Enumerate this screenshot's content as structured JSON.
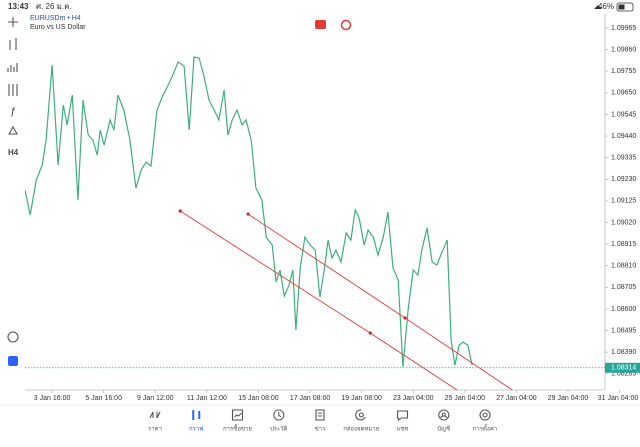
{
  "status_bar": {
    "time": "13:43",
    "date": "ศ. 26 ม.ค.",
    "battery": "46%"
  },
  "toolbar": {
    "timeframe": "H4"
  },
  "chart_data": {
    "type": "line",
    "title": "EURUSDm • H4",
    "subtitle": "Euro vs US Dollar",
    "color": "#3fae7f",
    "x": [
      -6.3,
      -5.1,
      -3.7,
      -2.3,
      -1.4,
      0,
      1.4,
      2.6,
      3.5,
      4.7,
      6.0,
      7.2,
      8.4,
      9.5,
      10.5,
      11.2,
      12.1,
      13.5,
      14.4,
      15.3,
      16.7,
      18.1,
      19.5,
      20.7,
      21.9,
      23.0,
      24.4,
      25.6,
      27.0,
      28.1,
      29.3,
      30.7,
      31.9,
      33.0,
      34.2,
      35.3,
      36.5,
      37.7,
      38.8,
      40.0,
      40.9,
      41.9,
      43.0,
      44.2,
      45.1,
      46.3,
      47.4,
      48.8,
      49.8,
      51.2,
      52.1,
      53.0,
      54.0,
      55.1,
      56.0,
      56.7,
      57.7,
      58.8,
      60.0,
      61.2,
      62.3,
      63.3,
      64.2,
      65.1,
      66.0,
      67.2,
      68.4,
      69.5,
      70.5,
      71.4,
      72.6,
      73.5,
      74.7,
      75.8,
      77.0,
      78.1,
      79.3,
      80.5,
      81.6,
      82.8,
      84.0,
      85.1,
      86.0,
      87.2,
      88.4,
      89.5,
      90.7,
      91.9,
      92.8,
      93.7,
      94.7,
      95.6,
      96.7,
      97.7
    ],
    "values": [
      1.09178,
      1.09056,
      1.09226,
      1.09299,
      1.09421,
      1.09785,
      1.09299,
      1.09591,
      1.09494,
      1.09639,
      1.09129,
      1.09615,
      1.09445,
      1.09421,
      1.09348,
      1.09469,
      1.09396,
      1.09518,
      1.09469,
      1.09639,
      1.09566,
      1.09421,
      1.09187,
      1.09275,
      1.09314,
      1.09294,
      1.09566,
      1.0963,
      1.09688,
      1.09737,
      1.098,
      1.0978,
      1.09469,
      1.09824,
      1.09819,
      1.09732,
      1.09615,
      1.09566,
      1.09518,
      1.09664,
      1.09445,
      1.09518,
      1.09566,
      1.09494,
      1.09518,
      1.09421,
      1.09187,
      1.09129,
      1.08949,
      1.0891,
      1.08731,
      1.08789,
      1.08663,
      1.08716,
      1.08789,
      1.08497,
      1.08799,
      1.08949,
      1.0891,
      1.08886,
      1.08658,
      1.08789,
      1.08935,
      1.08847,
      1.08886,
      1.08828,
      1.08969,
      1.08935,
      1.09081,
      1.09042,
      1.0891,
      1.08983,
      1.08949,
      1.08862,
      1.08944,
      1.09071,
      1.08799,
      1.0874,
      1.08318,
      1.08595,
      1.08789,
      1.08765,
      1.08886,
      1.08993,
      1.08828,
      1.08813,
      1.08876,
      1.08935,
      1.08449,
      1.08327,
      1.08424,
      1.08439,
      1.08424,
      1.08327
    ],
    "xlim": [
      -6.3,
      128.6
    ],
    "ylim": [
      1.08206,
      1.10004
    ],
    "xticks": [
      {
        "value": 0,
        "label": "3 Jan 16:00"
      },
      {
        "value": 12,
        "label": "5 Jan 16:00"
      },
      {
        "value": 24,
        "label": "9 Jan 12:00"
      },
      {
        "value": 36,
        "label": "11 Jan 12:00"
      },
      {
        "value": 48,
        "label": "15 Jan 08:00"
      },
      {
        "value": 60,
        "label": "17 Jan 08:00"
      },
      {
        "value": 72,
        "label": "19 Jan 08:00"
      },
      {
        "value": 84,
        "label": "23 Jan 04:00"
      },
      {
        "value": 96,
        "label": "25 Jan 04:00"
      },
      {
        "value": 108,
        "label": "27 Jan 04:00"
      },
      {
        "value": 120,
        "label": "29 Jan 04:00"
      },
      {
        "value": 132,
        "label": "31 Jan 04:00"
      }
    ],
    "yticks": [
      1.09965,
      {
        "value": 1.0986,
        "label": "1.09860"
      },
      1.09755,
      {
        "value": 1.0965,
        "label": "1.09650"
      },
      1.09545,
      {
        "value": 1.0944,
        "label": "1.09440"
      },
      1.09335,
      {
        "value": 1.0923,
        "label": "1.09230"
      },
      1.09125,
      {
        "value": 1.0902,
        "label": "1.09020"
      },
      1.08915,
      {
        "value": 1.0881,
        "label": "1.08810"
      },
      1.08705,
      {
        "value": 1.086,
        "label": "1.08600"
      },
      1.08495,
      {
        "value": 1.0839,
        "label": "1.08390"
      },
      1.08285
    ],
    "current_price": {
      "value": 1.08314,
      "color": "#26a69a"
    },
    "trendlines": [
      {
        "color": "#e53935",
        "x": [
          29.8,
          74.0,
          96.0
        ],
        "y": [
          1.09076,
          1.08483,
          1.08181
        ]
      },
      {
        "color": "#e53935",
        "x": [
          45.6,
          82.1,
          108.8
        ],
        "y": [
          1.09061,
          1.08556,
          1.08181
        ]
      }
    ]
  },
  "nav": {
    "active": 1,
    "items": [
      "ราคา",
      "กราฟ",
      "การซื้อขาย",
      "ประวัติ",
      "ข่าว",
      "กล่องจดหมาย",
      "แชท",
      "บัญชี",
      "การตั้งค่า"
    ]
  }
}
